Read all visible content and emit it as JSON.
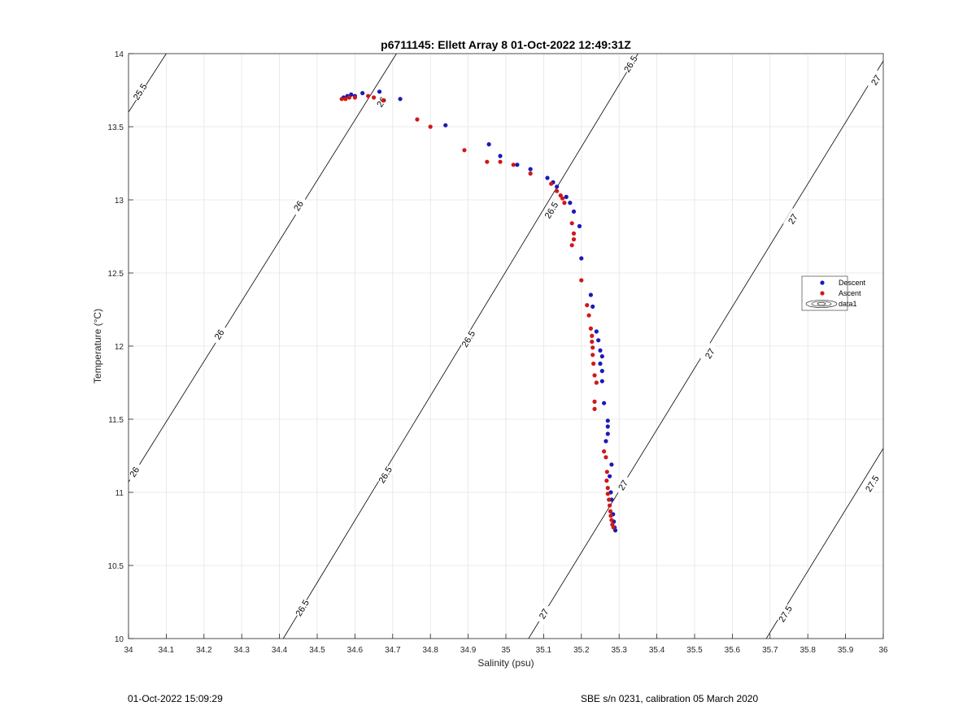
{
  "chart_data": {
    "type": "scatter",
    "title": "p6711145: Ellett Array 8 01-Oct-2022 12:49:31Z",
    "xlabel": "Salinity (psu)",
    "ylabel": "Temperature (°C)",
    "xlim": [
      34,
      36
    ],
    "ylim": [
      10,
      14
    ],
    "xticks": [
      34,
      34.1,
      34.2,
      34.3,
      34.4,
      34.5,
      34.6,
      34.7,
      34.8,
      34.9,
      35,
      35.1,
      35.2,
      35.3,
      35.4,
      35.5,
      35.6,
      35.7,
      35.8,
      35.9,
      36
    ],
    "xtick_labels": [
      "34",
      "34.1",
      "34.2",
      "34.3",
      "34.4",
      "34.5",
      "34.6",
      "34.7",
      "34.8",
      "34.9",
      "35",
      "35.1",
      "35.2",
      "35.3",
      "35.4",
      "35.5",
      "35.6",
      "35.7",
      "35.8",
      "35.9",
      "36"
    ],
    "yticks": [
      10,
      10.5,
      11,
      11.5,
      12,
      12.5,
      13,
      13.5,
      14
    ],
    "ytick_labels": [
      "10",
      "10.5",
      "11",
      "11.5",
      "12",
      "12.5",
      "13",
      "13.5",
      "14"
    ],
    "grid": true,
    "legend": {
      "position": "right",
      "entries": [
        {
          "label": "Descent",
          "marker": "dot",
          "color": "#1a1ab8"
        },
        {
          "label": "Ascent",
          "marker": "dot",
          "color": "#d01818"
        },
        {
          "label": "data1",
          "marker": "contour",
          "color": "#000000"
        }
      ]
    },
    "contours": [
      {
        "label": "25.5",
        "points": [
          [
            34,
            13.6
          ],
          [
            34.1,
            14
          ]
        ],
        "label_positions": [
          [
            34.03,
            13.74
          ]
        ]
      },
      {
        "label": "26",
        "points": [
          [
            34,
            11.07
          ],
          [
            34.71,
            14
          ]
        ],
        "label_positions": [
          [
            34.015,
            11.14
          ],
          [
            34.24,
            12.08
          ],
          [
            34.45,
            12.96
          ],
          [
            34.67,
            13.67
          ]
        ]
      },
      {
        "label": "26.5",
        "points": [
          [
            34.41,
            10
          ],
          [
            35.35,
            14
          ]
        ],
        "label_positions": [
          [
            34.46,
            10.21
          ],
          [
            34.68,
            11.12
          ],
          [
            34.9,
            12.05
          ],
          [
            35.12,
            12.93
          ],
          [
            35.33,
            13.93
          ]
        ]
      },
      {
        "label": "27",
        "points": [
          [
            35.06,
            10
          ],
          [
            36,
            13.95
          ]
        ],
        "label_positions": [
          [
            35.1,
            10.17
          ],
          [
            35.31,
            11.05
          ],
          [
            35.54,
            11.95
          ],
          [
            35.76,
            12.87
          ],
          [
            35.98,
            13.82
          ]
        ]
      },
      {
        "label": "27.5",
        "points": [
          [
            35.69,
            10
          ],
          [
            36,
            11.3
          ]
        ],
        "label_positions": [
          [
            35.74,
            10.17
          ],
          [
            35.97,
            11.06
          ]
        ]
      }
    ],
    "series": [
      {
        "name": "Descent",
        "color": "#1a1ab8",
        "points": [
          [
            34.57,
            13.7
          ],
          [
            34.58,
            13.71
          ],
          [
            34.59,
            13.72
          ],
          [
            34.6,
            13.71
          ],
          [
            34.62,
            13.73
          ],
          [
            34.665,
            13.74
          ],
          [
            34.72,
            13.69
          ],
          [
            34.84,
            13.51
          ],
          [
            34.955,
            13.38
          ],
          [
            34.985,
            13.3
          ],
          [
            35.03,
            13.24
          ],
          [
            35.065,
            13.21
          ],
          [
            35.11,
            13.15
          ],
          [
            35.125,
            13.12
          ],
          [
            35.135,
            13.09
          ],
          [
            35.16,
            13.02
          ],
          [
            35.17,
            12.98
          ],
          [
            35.18,
            12.92
          ],
          [
            35.195,
            12.82
          ],
          [
            35.2,
            12.6
          ],
          [
            35.225,
            12.35
          ],
          [
            35.23,
            12.27
          ],
          [
            35.24,
            12.1
          ],
          [
            35.245,
            12.04
          ],
          [
            35.25,
            11.97
          ],
          [
            35.255,
            11.93
          ],
          [
            35.25,
            11.88
          ],
          [
            35.255,
            11.83
          ],
          [
            35.255,
            11.76
          ],
          [
            35.26,
            11.61
          ],
          [
            35.27,
            11.49
          ],
          [
            35.27,
            11.45
          ],
          [
            35.27,
            11.4
          ],
          [
            35.265,
            11.35
          ],
          [
            35.28,
            11.19
          ],
          [
            35.275,
            11.11
          ],
          [
            35.278,
            11.0
          ],
          [
            35.28,
            10.95
          ],
          [
            35.284,
            10.85
          ],
          [
            35.286,
            10.8
          ],
          [
            35.288,
            10.76
          ],
          [
            35.29,
            10.74
          ]
        ]
      },
      {
        "name": "Ascent",
        "color": "#d01818",
        "points": [
          [
            34.565,
            13.69
          ],
          [
            34.575,
            13.69
          ],
          [
            34.585,
            13.7
          ],
          [
            34.6,
            13.7
          ],
          [
            34.635,
            13.71
          ],
          [
            34.65,
            13.7
          ],
          [
            34.675,
            13.68
          ],
          [
            34.765,
            13.55
          ],
          [
            34.8,
            13.5
          ],
          [
            34.89,
            13.34
          ],
          [
            34.95,
            13.26
          ],
          [
            34.985,
            13.26
          ],
          [
            35.02,
            13.24
          ],
          [
            35.065,
            13.18
          ],
          [
            35.12,
            13.11
          ],
          [
            35.135,
            13.06
          ],
          [
            35.145,
            13.03
          ],
          [
            35.15,
            13.01
          ],
          [
            35.155,
            12.98
          ],
          [
            35.175,
            12.84
          ],
          [
            35.18,
            12.77
          ],
          [
            35.18,
            12.73
          ],
          [
            35.175,
            12.69
          ],
          [
            35.2,
            12.45
          ],
          [
            35.215,
            12.28
          ],
          [
            35.22,
            12.21
          ],
          [
            35.225,
            12.12
          ],
          [
            35.228,
            12.07
          ],
          [
            35.228,
            12.03
          ],
          [
            35.23,
            11.99
          ],
          [
            35.23,
            11.94
          ],
          [
            35.232,
            11.88
          ],
          [
            35.235,
            11.8
          ],
          [
            35.24,
            11.75
          ],
          [
            35.235,
            11.62
          ],
          [
            35.235,
            11.57
          ],
          [
            35.26,
            11.28
          ],
          [
            35.265,
            11.24
          ],
          [
            35.268,
            11.14
          ],
          [
            35.267,
            11.08
          ],
          [
            35.27,
            11.03
          ],
          [
            35.27,
            10.99
          ],
          [
            35.273,
            10.95
          ],
          [
            35.275,
            10.91
          ],
          [
            35.277,
            10.87
          ],
          [
            35.278,
            10.84
          ],
          [
            35.28,
            10.81
          ],
          [
            35.282,
            10.78
          ],
          [
            35.285,
            10.76
          ]
        ]
      }
    ]
  },
  "footer": {
    "left": "01-Oct-2022 15:09:29",
    "right": "SBE s/n 0231, calibration 05 March 2020"
  }
}
